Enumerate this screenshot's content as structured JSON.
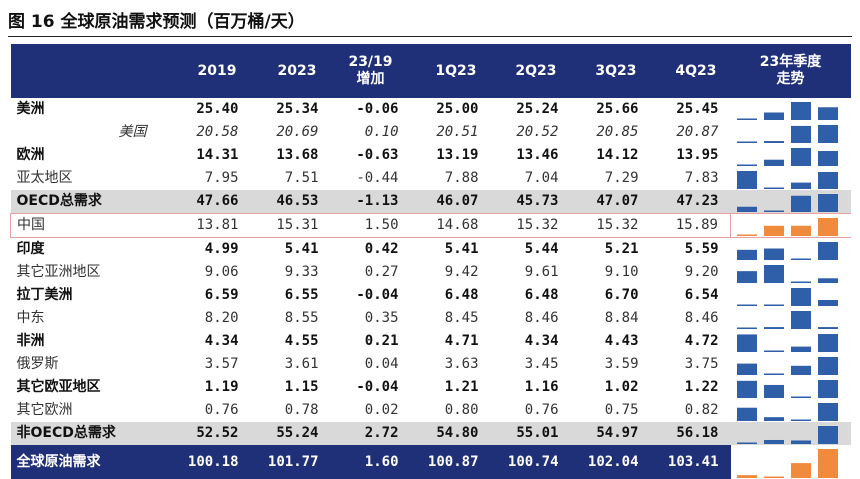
{
  "title": "图 16    全球原油需求预测（百万桶/天）",
  "header": {
    "col_2019": "2019",
    "col_2023": "2023",
    "col_change_line1": "23/19",
    "col_change_line2": "增加",
    "col_1q": "1Q23",
    "col_2q": "2Q23",
    "col_3q": "3Q23",
    "col_4q": "4Q23",
    "trend_line1": "23年季度",
    "trend_line2": "走势"
  },
  "colors": {
    "header_bg": "#1f2f78",
    "bar_blue": "#2f5fa8",
    "bar_orange": "#f08a3c",
    "shade": "#d9d9d9",
    "highlight_border": "#e8a0a0"
  },
  "rows": [
    {
      "label": "美洲",
      "v2019": "25.40",
      "v2023": "25.34",
      "chg": "-0.06",
      "q1": "25.00",
      "q2": "25.24",
      "q3": "25.66",
      "q4": "25.45",
      "style": "bold",
      "spark": [
        25.0,
        25.24,
        25.66,
        25.45
      ]
    },
    {
      "label": "美国",
      "v2019": "20.58",
      "v2023": "20.69",
      "chg": "0.10",
      "q1": "20.51",
      "q2": "20.52",
      "q3": "20.85",
      "q4": "20.87",
      "style": "italic",
      "spark": [
        20.51,
        20.52,
        20.85,
        20.87
      ]
    },
    {
      "label": "欧洲",
      "v2019": "14.31",
      "v2023": "13.68",
      "chg": "-0.63",
      "q1": "13.19",
      "q2": "13.46",
      "q3": "14.12",
      "q4": "13.95",
      "style": "bold",
      "spark": [
        13.19,
        13.46,
        14.12,
        13.95
      ]
    },
    {
      "label": "亚太地区",
      "v2019": "7.95",
      "v2023": "7.51",
      "chg": "-0.44",
      "q1": "7.88",
      "q2": "7.04",
      "q3": "7.29",
      "q4": "7.83",
      "style": "sub",
      "spark": [
        7.88,
        7.04,
        7.29,
        7.83
      ]
    },
    {
      "label": "OECD总需求",
      "v2019": "47.66",
      "v2023": "46.53",
      "chg": "-1.13",
      "q1": "46.07",
      "q2": "45.73",
      "q3": "47.07",
      "q4": "47.23",
      "style": "bold shade",
      "spark": [
        46.07,
        45.73,
        47.07,
        47.23
      ]
    },
    {
      "label": "中国",
      "v2019": "13.81",
      "v2023": "15.31",
      "chg": "1.50",
      "q1": "14.68",
      "q2": "15.32",
      "q3": "15.32",
      "q4": "15.89",
      "style": "sub hl",
      "spark": [
        14.68,
        15.32,
        15.32,
        15.89
      ],
      "spark_color": "orange"
    },
    {
      "label": "印度",
      "v2019": "4.99",
      "v2023": "5.41",
      "chg": "0.42",
      "q1": "5.41",
      "q2": "5.44",
      "q3": "5.21",
      "q4": "5.59",
      "style": "bold",
      "spark": [
        5.41,
        5.44,
        5.21,
        5.59
      ]
    },
    {
      "label": "其它亚洲地区",
      "v2019": "9.06",
      "v2023": "9.33",
      "chg": "0.27",
      "q1": "9.42",
      "q2": "9.61",
      "q3": "9.10",
      "q4": "9.20",
      "style": "sub",
      "spark": [
        9.42,
        9.61,
        9.1,
        9.2
      ]
    },
    {
      "label": "拉丁美洲",
      "v2019": "6.59",
      "v2023": "6.55",
      "chg": "-0.04",
      "q1": "6.48",
      "q2": "6.48",
      "q3": "6.70",
      "q4": "6.54",
      "style": "bold",
      "spark": [
        6.48,
        6.48,
        6.7,
        6.54
      ]
    },
    {
      "label": "中东",
      "v2019": "8.20",
      "v2023": "8.55",
      "chg": "0.35",
      "q1": "8.45",
      "q2": "8.46",
      "q3": "8.84",
      "q4": "8.46",
      "style": "sub",
      "spark": [
        8.45,
        8.46,
        8.84,
        8.46
      ]
    },
    {
      "label": "非洲",
      "v2019": "4.34",
      "v2023": "4.55",
      "chg": "0.21",
      "q1": "4.71",
      "q2": "4.34",
      "q3": "4.43",
      "q4": "4.72",
      "style": "bold",
      "spark": [
        4.71,
        4.34,
        4.43,
        4.72
      ]
    },
    {
      "label": "俄罗斯",
      "v2019": "3.57",
      "v2023": "3.61",
      "chg": "0.04",
      "q1": "3.63",
      "q2": "3.45",
      "q3": "3.59",
      "q4": "3.75",
      "style": "sub",
      "spark": [
        3.63,
        3.45,
        3.59,
        3.75
      ]
    },
    {
      "label": "其它欧亚地区",
      "v2019": "1.19",
      "v2023": "1.15",
      "chg": "-0.04",
      "q1": "1.21",
      "q2": "1.16",
      "q3": "1.02",
      "q4": "1.22",
      "style": "bold",
      "spark": [
        1.21,
        1.16,
        1.02,
        1.22
      ]
    },
    {
      "label": "其它欧洲",
      "v2019": "0.76",
      "v2023": "0.78",
      "chg": "0.02",
      "q1": "0.80",
      "q2": "0.76",
      "q3": "0.75",
      "q4": "0.82",
      "style": "sub",
      "spark": [
        0.8,
        0.76,
        0.75,
        0.82
      ]
    },
    {
      "label": "非OECD总需求",
      "v2019": "52.52",
      "v2023": "55.24",
      "chg": "2.72",
      "q1": "54.80",
      "q2": "55.01",
      "q3": "54.97",
      "q4": "56.18",
      "style": "bold shade",
      "spark": [
        54.8,
        55.01,
        54.97,
        56.18
      ]
    },
    {
      "label": "全球原油需求",
      "v2019": "100.18",
      "v2023": "101.77",
      "chg": "1.60",
      "q1": "100.87",
      "q2": "100.74",
      "q3": "102.04",
      "q4": "103.41",
      "style": "total",
      "spark": [
        100.87,
        100.74,
        102.04,
        103.41
      ],
      "spark_color": "orange"
    }
  ]
}
